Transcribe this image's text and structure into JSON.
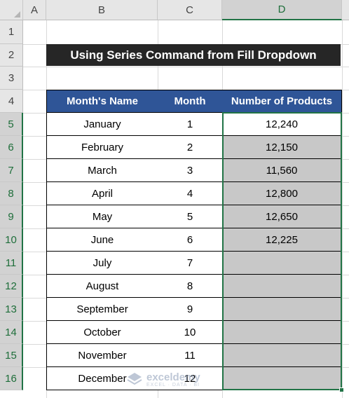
{
  "columns": [
    "A",
    "B",
    "C",
    "D"
  ],
  "rows": [
    "1",
    "2",
    "3",
    "4",
    "5",
    "6",
    "7",
    "8",
    "9",
    "10",
    "11",
    "12",
    "13",
    "14",
    "15",
    "16"
  ],
  "title": "Using Series Command from Fill Dropdown",
  "table": {
    "headers": [
      "Month's Name",
      "Month",
      "Number of Products"
    ],
    "rows": [
      {
        "name": "January",
        "month": "1",
        "products": "12,240"
      },
      {
        "name": "February",
        "month": "2",
        "products": "12,150"
      },
      {
        "name": "March",
        "month": "3",
        "products": "11,560"
      },
      {
        "name": "April",
        "month": "4",
        "products": "12,800"
      },
      {
        "name": "May",
        "month": "5",
        "products": "12,650"
      },
      {
        "name": "June",
        "month": "6",
        "products": "12,225"
      },
      {
        "name": "July",
        "month": "7",
        "products": ""
      },
      {
        "name": "August",
        "month": "8",
        "products": ""
      },
      {
        "name": "September",
        "month": "9",
        "products": ""
      },
      {
        "name": "October",
        "month": "10",
        "products": ""
      },
      {
        "name": "November",
        "month": "11",
        "products": ""
      },
      {
        "name": "December",
        "month": "12",
        "products": ""
      }
    ]
  },
  "watermark": {
    "name": "exceldemy",
    "tagline": "EXCEL · DATA · BI"
  },
  "colors": {
    "header_fill": "#2f5597",
    "title_fill": "#262626",
    "selection": "#217346",
    "selected_fill": "#c8c8c8"
  }
}
